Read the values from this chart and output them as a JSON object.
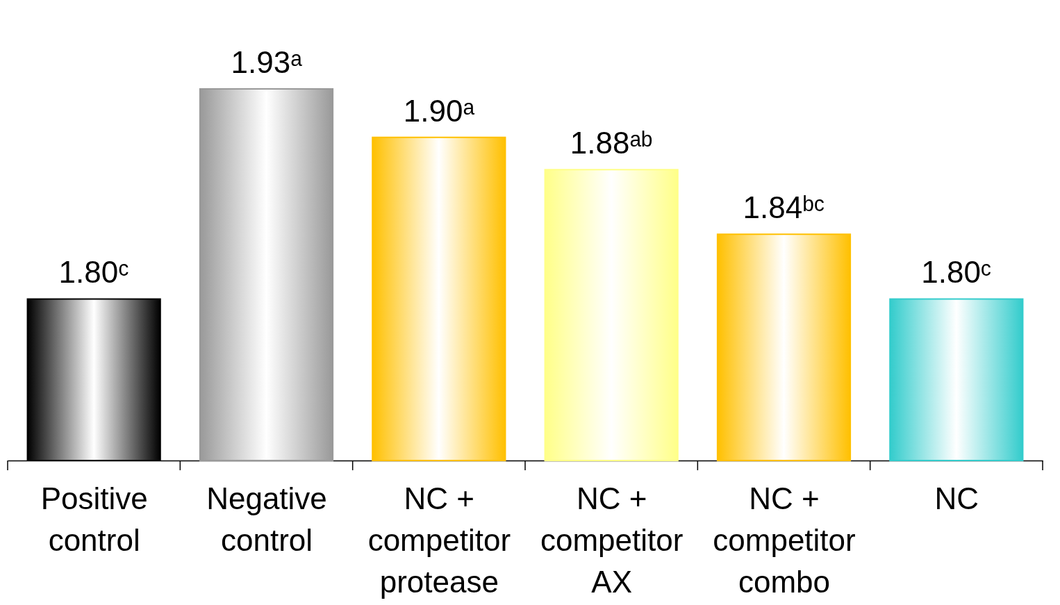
{
  "chart_data": {
    "type": "bar",
    "categories": [
      "Positive control",
      "Negative control",
      "NC + competitor protease",
      "NC + competitor AX",
      "NC + competitor combo",
      "NC"
    ],
    "values": [
      1.8,
      1.93,
      1.9,
      1.88,
      1.84,
      1.8
    ],
    "colors": [
      "#000000",
      "#999999",
      "#ffc000",
      "#ffff88",
      "#ffc000",
      "#33cccc"
    ],
    "value_labels": [
      "1.80ᶜ",
      "1.93ᵃ",
      "1.90ᵃ",
      "1.88ᵃᵇ",
      "1.84ᵇᶜ",
      "1.80ᶜ"
    ],
    "ylim": [
      1.7,
      1.93
    ],
    "grid": false
  }
}
